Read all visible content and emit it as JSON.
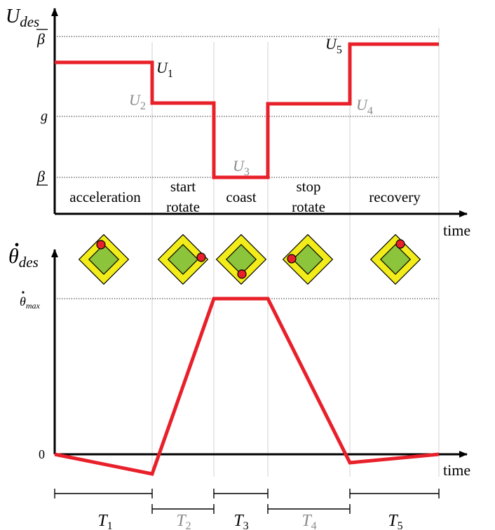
{
  "top_plot": {
    "ylabel": "U",
    "ylabel_sub": "des",
    "xlabel": "time",
    "y_ticks": [
      {
        "key": "beta_bar",
        "label": "β",
        "overline": true,
        "underline": false
      },
      {
        "key": "g",
        "label": "g",
        "overline": false,
        "underline": false
      },
      {
        "key": "beta_low",
        "label": "β",
        "overline": false,
        "underline": true
      }
    ],
    "phases": [
      {
        "line1": "acceleration",
        "line2": ""
      },
      {
        "line1": "start",
        "line2": "rotate"
      },
      {
        "line1": "coast",
        "line2": ""
      },
      {
        "line1": "stop",
        "line2": "rotate"
      },
      {
        "line1": "recovery",
        "line2": ""
      }
    ],
    "level_labels": [
      {
        "main": "U",
        "sub": "1",
        "color": "#000000"
      },
      {
        "main": "U",
        "sub": "2",
        "color": "#8a8a8a"
      },
      {
        "main": "U",
        "sub": "3",
        "color": "#8a8a8a"
      },
      {
        "main": "U",
        "sub": "4",
        "color": "#8a8a8a"
      },
      {
        "main": "U",
        "sub": "5",
        "color": "#000000"
      }
    ]
  },
  "bottom_plot": {
    "ylabel": "θ",
    "ylabel_sub": "des",
    "xlabel": "time",
    "y_ticks": {
      "max_main": "θ",
      "max_sub": "max",
      "zero": "0"
    }
  },
  "intervals": [
    {
      "main": "T",
      "sub": "1",
      "color": "#000000"
    },
    {
      "main": "T",
      "sub": "2",
      "color": "#8a8a8a"
    },
    {
      "main": "T",
      "sub": "3",
      "color": "#000000"
    },
    {
      "main": "T",
      "sub": "4",
      "color": "#8a8a8a"
    },
    {
      "main": "T",
      "sub": "5",
      "color": "#000000"
    }
  ],
  "colors": {
    "curve": "#e8202a",
    "outer_diamond": "#f2ec1a",
    "inner_diamond": "#8cc43c",
    "dot": "#e8202a",
    "axis": "#000000",
    "gray_label": "#8a8a8a",
    "phase_divider": "#d0d0d0"
  }
}
